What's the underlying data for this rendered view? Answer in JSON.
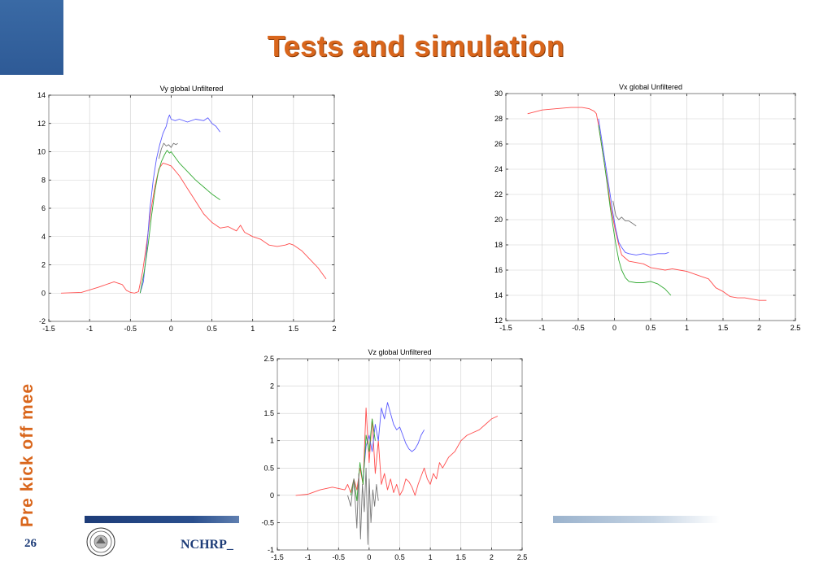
{
  "slide": {
    "title": "Tests and simulation",
    "side_title": "Pre kick off mee",
    "page_number": "26",
    "footer_text": "NCHRP_"
  },
  "colors": {
    "title": "#d9661c",
    "accent_blue": "#1d3c78",
    "series_red": "#ff4d4d",
    "series_blue": "#5a5aff",
    "series_green": "#33aa33",
    "series_gray": "#777777"
  },
  "chart_data": [
    {
      "type": "line",
      "title": "Vy global Unfiltered",
      "xlim": [
        -1.5,
        2
      ],
      "ylim": [
        -2,
        14
      ],
      "xticks": [
        -1.5,
        -1,
        -0.5,
        0,
        0.5,
        1,
        1.5,
        2
      ],
      "yticks": [
        -2,
        0,
        2,
        4,
        6,
        8,
        10,
        12,
        14
      ],
      "xtick_labels": [
        "-1.5",
        "-1",
        "-0.5",
        "0",
        "0.5",
        "1",
        "1.5",
        "2"
      ],
      "ytick_labels": [
        "-2",
        "0",
        "2",
        "4",
        "6",
        "8",
        "10",
        "12",
        "14"
      ],
      "grid": true,
      "series": [
        {
          "color": "#ff4d4d",
          "x": [
            -1.35,
            -1.1,
            -0.9,
            -0.7,
            -0.6,
            -0.55,
            -0.5,
            -0.45,
            -0.4,
            -0.35,
            -0.3,
            -0.25,
            -0.2,
            -0.15,
            -0.1,
            -0.05,
            0,
            0.1,
            0.2,
            0.3,
            0.4,
            0.5,
            0.6,
            0.7,
            0.8,
            0.85,
            0.9,
            1.0,
            1.1,
            1.2,
            1.3,
            1.4,
            1.45,
            1.5,
            1.6,
            1.7,
            1.8,
            1.9
          ],
          "y": [
            0,
            0.05,
            0.4,
            0.8,
            0.6,
            0.2,
            0.05,
            0,
            0.1,
            1.5,
            3.5,
            5.8,
            7.5,
            8.8,
            9.2,
            9.1,
            9.0,
            8.3,
            7.4,
            6.5,
            5.6,
            5.0,
            4.6,
            4.7,
            4.4,
            4.8,
            4.3,
            4.0,
            3.8,
            3.4,
            3.3,
            3.4,
            3.5,
            3.4,
            3.0,
            2.4,
            1.8,
            1.0
          ]
        },
        {
          "color": "#5a5aff",
          "x": [
            -0.38,
            -0.34,
            -0.3,
            -0.26,
            -0.22,
            -0.18,
            -0.14,
            -0.1,
            -0.06,
            -0.04,
            -0.02,
            0,
            0.05,
            0.1,
            0.2,
            0.3,
            0.4,
            0.45,
            0.5,
            0.55,
            0.6
          ],
          "y": [
            0,
            0.8,
            3,
            6,
            8,
            9.5,
            10.5,
            11.3,
            11.8,
            12.3,
            12.6,
            12.3,
            12.2,
            12.3,
            12.1,
            12.3,
            12.2,
            12.4,
            12.0,
            11.8,
            11.4
          ]
        },
        {
          "color": "#33aa33",
          "x": [
            -0.38,
            -0.33,
            -0.28,
            -0.24,
            -0.2,
            -0.16,
            -0.12,
            -0.08,
            -0.05,
            -0.02,
            0,
            0.05,
            0.1,
            0.2,
            0.3,
            0.4,
            0.5,
            0.6
          ],
          "y": [
            0,
            1.5,
            3.5,
            5.5,
            7.2,
            8.5,
            9.3,
            9.8,
            10.1,
            9.9,
            10.0,
            9.6,
            9.2,
            8.6,
            8.0,
            7.5,
            7.0,
            6.6
          ]
        },
        {
          "color": "#777777",
          "x": [
            -0.15,
            -0.12,
            -0.09,
            -0.06,
            -0.03,
            0,
            0.03,
            0.06,
            0.08
          ],
          "y": [
            9.5,
            10.2,
            10.6,
            10.4,
            10.5,
            10.3,
            10.6,
            10.5,
            10.6
          ]
        }
      ]
    },
    {
      "type": "line",
      "title": "Vx global Unfiltered",
      "xlim": [
        -1.5,
        2.5
      ],
      "ylim": [
        12,
        30
      ],
      "xticks": [
        -1.5,
        -1,
        -0.5,
        0,
        0.5,
        1,
        1.5,
        2,
        2.5
      ],
      "yticks": [
        12,
        14,
        16,
        18,
        20,
        22,
        24,
        26,
        28,
        30
      ],
      "xtick_labels": [
        "-1.5",
        "-1",
        "-0.5",
        "0",
        "0.5",
        "1",
        "1.5",
        "2",
        "2.5"
      ],
      "ytick_labels": [
        "12",
        "14",
        "16",
        "18",
        "20",
        "22",
        "24",
        "26",
        "28",
        "30"
      ],
      "grid": true,
      "series": [
        {
          "color": "#ff4d4d",
          "x": [
            -1.2,
            -1.0,
            -0.8,
            -0.6,
            -0.45,
            -0.35,
            -0.28,
            -0.25,
            -0.22,
            -0.18,
            -0.14,
            -0.1,
            -0.05,
            0,
            0.05,
            0.1,
            0.2,
            0.3,
            0.4,
            0.5,
            0.6,
            0.7,
            0.8,
            0.9,
            1.0,
            1.1,
            1.2,
            1.3,
            1.4,
            1.5,
            1.6,
            1.7,
            1.8,
            1.9,
            2.0,
            2.1
          ],
          "y": [
            28.4,
            28.7,
            28.8,
            28.9,
            28.9,
            28.8,
            28.6,
            28.4,
            27.5,
            26,
            24.5,
            23,
            21,
            19.5,
            18.2,
            17.2,
            16.7,
            16.6,
            16.5,
            16.2,
            16.1,
            16.0,
            16.1,
            16.0,
            15.9,
            15.7,
            15.5,
            15.3,
            14.6,
            14.3,
            13.9,
            13.8,
            13.8,
            13.7,
            13.6,
            13.6
          ]
        },
        {
          "color": "#5a5aff",
          "x": [
            -0.22,
            -0.18,
            -0.14,
            -0.1,
            -0.06,
            -0.02,
            0.02,
            0.06,
            0.1,
            0.15,
            0.2,
            0.3,
            0.4,
            0.5,
            0.6,
            0.7,
            0.75
          ],
          "y": [
            28.0,
            26.5,
            25,
            23.5,
            22.0,
            20.5,
            19.2,
            18.2,
            17.8,
            17.4,
            17.3,
            17.2,
            17.3,
            17.2,
            17.3,
            17.3,
            17.4
          ]
        },
        {
          "color": "#33aa33",
          "x": [
            -0.22,
            -0.18,
            -0.14,
            -0.1,
            -0.06,
            -0.02,
            0.02,
            0.06,
            0.1,
            0.15,
            0.2,
            0.3,
            0.4,
            0.5,
            0.6,
            0.7,
            0.78
          ],
          "y": [
            27.5,
            26,
            24.5,
            22.8,
            21,
            19.5,
            18.0,
            16.8,
            16.0,
            15.4,
            15.1,
            15.0,
            15.0,
            15.1,
            14.9,
            14.5,
            14.0
          ]
        },
        {
          "color": "#777777",
          "x": [
            -0.02,
            0.02,
            0.06,
            0.1,
            0.15,
            0.2,
            0.25,
            0.3
          ],
          "y": [
            21.5,
            20.3,
            20.0,
            20.2,
            19.9,
            19.9,
            19.7,
            19.5
          ]
        }
      ]
    },
    {
      "type": "line",
      "title": "Vz global Unfiltered",
      "xlim": [
        -1.5,
        2.5
      ],
      "ylim": [
        -1,
        2.5
      ],
      "xticks": [
        -1.5,
        -1,
        -0.5,
        0,
        0.5,
        1,
        1.5,
        2,
        2.5
      ],
      "yticks": [
        -1,
        -0.5,
        0,
        0.5,
        1,
        1.5,
        2,
        2.5
      ],
      "xtick_labels": [
        "-1.5",
        "-1",
        "-0.5",
        "0",
        "0.5",
        "1",
        "1.5",
        "2",
        "2.5"
      ],
      "ytick_labels": [
        "-1",
        "-0.5",
        "0",
        "0.5",
        "1",
        "1.5",
        "2",
        "2.5"
      ],
      "grid": true,
      "series": [
        {
          "color": "#ff4d4d",
          "x": [
            -1.2,
            -1.0,
            -0.8,
            -0.6,
            -0.4,
            -0.35,
            -0.3,
            -0.25,
            -0.2,
            -0.15,
            -0.1,
            -0.05,
            0,
            0.05,
            0.1,
            0.15,
            0.2,
            0.25,
            0.3,
            0.35,
            0.4,
            0.45,
            0.5,
            0.55,
            0.6,
            0.65,
            0.7,
            0.75,
            0.8,
            0.85,
            0.9,
            0.95,
            1.0,
            1.05,
            1.1,
            1.15,
            1.2,
            1.3,
            1.4,
            1.5,
            1.6,
            1.7,
            1.8,
            1.9,
            2.0,
            2.1
          ],
          "y": [
            0,
            0.02,
            0.1,
            0.15,
            0.1,
            0.2,
            0.05,
            0.3,
            0.1,
            0.5,
            0.2,
            1.6,
            0.6,
            1.4,
            0.4,
            1.0,
            0.2,
            0.4,
            0.1,
            0.3,
            0.05,
            0.2,
            0.0,
            0.1,
            0.3,
            0.25,
            0.15,
            0.0,
            0.2,
            0.35,
            0.5,
            0.3,
            0.2,
            0.4,
            0.3,
            0.6,
            0.5,
            0.7,
            0.8,
            1.0,
            1.1,
            1.15,
            1.2,
            1.3,
            1.4,
            1.45
          ]
        },
        {
          "color": "#5a5aff",
          "x": [
            -0.1,
            -0.05,
            0,
            0.05,
            0.1,
            0.15,
            0.2,
            0.25,
            0.3,
            0.35,
            0.4,
            0.45,
            0.5,
            0.55,
            0.6,
            0.65,
            0.7,
            0.75,
            0.8,
            0.85,
            0.9
          ],
          "y": [
            0.3,
            0.9,
            1.1,
            0.8,
            1.3,
            1.0,
            1.6,
            1.4,
            1.7,
            1.5,
            1.3,
            1.2,
            1.25,
            1.1,
            0.95,
            0.85,
            0.8,
            0.85,
            0.95,
            1.1,
            1.2
          ]
        },
        {
          "color": "#33aa33",
          "x": [
            -0.3,
            -0.25,
            -0.2,
            -0.15,
            -0.1,
            -0.05,
            0,
            0.05,
            0.1
          ],
          "y": [
            0.0,
            0.3,
            -0.1,
            0.6,
            0.2,
            1.1,
            0.8,
            1.4,
            1.0
          ]
        },
        {
          "color": "#777777",
          "x": [
            -0.35,
            -0.3,
            -0.25,
            -0.2,
            -0.17,
            -0.14,
            -0.11,
            -0.08,
            -0.05,
            -0.02,
            0,
            0.03,
            0.06,
            0.09,
            0.12,
            0.15
          ],
          "y": [
            0.0,
            -0.2,
            0.3,
            -0.6,
            0.4,
            -0.8,
            0.2,
            -0.3,
            0.5,
            -0.9,
            0.3,
            -0.5,
            0.1,
            -0.2,
            0.2,
            -0.1
          ]
        }
      ]
    }
  ]
}
